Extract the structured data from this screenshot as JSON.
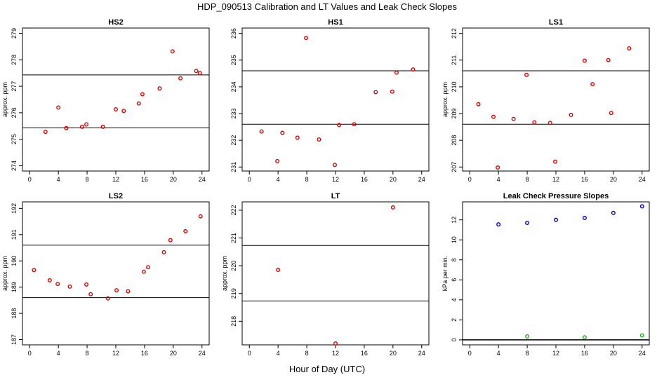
{
  "title": "HDP_090513  Calibration and LT Values and Leak Check Slopes",
  "xlabel": "Hour of Day (UTC)",
  "colors": {
    "points": "#dd0000",
    "blue": "#0000cc",
    "green": "#22aa22",
    "axis": "#000000"
  },
  "chart_data": [
    {
      "type": "scatter",
      "title": "HS2",
      "ylabel": "approx. ppm",
      "xlim": [
        -1,
        25
      ],
      "ylim": [
        273.8,
        279.2
      ],
      "x_ticks": [
        0,
        4,
        8,
        12,
        16,
        20,
        24
      ],
      "y_ticks": [
        274,
        275,
        276,
        277,
        278,
        279
      ],
      "hlines": [
        275.43,
        277.43
      ],
      "series": [
        {
          "color": "#dd0000",
          "x": [
            2.2,
            4.0,
            5.1,
            7.3,
            7.9,
            10.2,
            12.0,
            13.1,
            15.2,
            15.7,
            18.1,
            19.9,
            21.0,
            23.2,
            23.7
          ],
          "y": [
            275.28,
            276.2,
            275.42,
            275.47,
            275.56,
            275.47,
            276.13,
            276.07,
            276.35,
            276.7,
            276.92,
            278.32,
            277.3,
            277.58,
            277.5
          ]
        }
      ]
    },
    {
      "type": "scatter",
      "title": "HS1",
      "ylabel": "",
      "xlim": [
        -1,
        25
      ],
      "ylim": [
        230.85,
        236.2
      ],
      "x_ticks": [
        0,
        4,
        8,
        12,
        16,
        20,
        24
      ],
      "y_ticks": [
        231,
        232,
        233,
        234,
        235,
        236
      ],
      "hlines": [
        232.6,
        234.6
      ],
      "series": [
        {
          "color": "#dd0000",
          "x": [
            1.7,
            3.9,
            4.6,
            6.7,
            7.9,
            9.7,
            11.9,
            12.5,
            14.6,
            17.6,
            19.9,
            20.5,
            22.8
          ],
          "y": [
            232.33,
            231.22,
            232.28,
            232.1,
            235.83,
            232.03,
            231.08,
            232.57,
            232.6,
            233.8,
            233.82,
            234.53,
            234.65
          ]
        }
      ]
    },
    {
      "type": "scatter",
      "title": "LS1",
      "ylabel": "approx. ppm",
      "xlim": [
        -1,
        25
      ],
      "ylim": [
        206.85,
        212.2
      ],
      "x_ticks": [
        0,
        4,
        8,
        12,
        16,
        20,
        24
      ],
      "y_ticks": [
        207,
        208,
        209,
        210,
        211,
        212
      ],
      "hlines": [
        208.6,
        210.6
      ],
      "series": [
        {
          "color": "#dd0000",
          "x": [
            1.2,
            3.3,
            3.9,
            6.1,
            7.9,
            9.0,
            11.2,
            11.9,
            14.1,
            16.0,
            17.1,
            19.3,
            19.7,
            22.2
          ],
          "y": [
            209.35,
            208.88,
            206.98,
            208.8,
            210.45,
            208.67,
            208.65,
            207.2,
            208.95,
            210.98,
            210.1,
            211.0,
            209.02,
            211.44
          ]
        }
      ]
    },
    {
      "type": "scatter",
      "title": "LS2",
      "ylabel": "approx. ppm",
      "xlim": [
        -1,
        25
      ],
      "ylim": [
        186.8,
        192.25
      ],
      "x_ticks": [
        0,
        4,
        8,
        12,
        16,
        20,
        24
      ],
      "y_ticks": [
        187,
        188,
        189,
        190,
        191,
        192
      ],
      "hlines": [
        188.6,
        190.6
      ],
      "series": [
        {
          "color": "#dd0000",
          "x": [
            0.6,
            2.8,
            3.9,
            5.6,
            7.9,
            8.5,
            10.9,
            12.1,
            13.7,
            15.9,
            16.5,
            18.7,
            19.6,
            21.7,
            23.8
          ],
          "y": [
            189.65,
            189.26,
            189.12,
            189.02,
            189.1,
            188.73,
            188.57,
            188.88,
            188.84,
            189.59,
            189.76,
            190.33,
            190.79,
            191.13,
            191.7
          ]
        }
      ]
    },
    {
      "type": "scatter",
      "title": "LT",
      "ylabel": "approx. ppm",
      "xlim": [
        -1,
        25
      ],
      "ylim": [
        217.15,
        222.3
      ],
      "x_ticks": [
        0,
        4,
        8,
        12,
        16,
        20,
        24
      ],
      "y_ticks": [
        218,
        219,
        220,
        221,
        222
      ],
      "hlines": [
        218.73,
        220.73
      ],
      "series": [
        {
          "color": "#dd0000",
          "x": [
            4.0,
            12.0,
            20.0
          ],
          "y": [
            219.85,
            217.2,
            222.1
          ]
        }
      ]
    },
    {
      "type": "scatter",
      "title": "Leak Check Pressure Slopes",
      "ylabel": "kPa per min.",
      "xlim": [
        -1,
        25
      ],
      "ylim": [
        -0.5,
        13.8
      ],
      "x_ticks": [
        0,
        4,
        8,
        12,
        16,
        20,
        24
      ],
      "y_ticks": [
        0,
        2,
        4,
        6,
        8,
        10,
        12
      ],
      "hlines": [
        0
      ],
      "series": [
        {
          "color": "#0000cc",
          "x": [
            4,
            8,
            12,
            16,
            20,
            24
          ],
          "y": [
            11.55,
            11.7,
            12.0,
            12.2,
            12.7,
            13.35
          ]
        },
        {
          "color": "#22aa22",
          "x": [
            8,
            16,
            24
          ],
          "y": [
            0.35,
            0.25,
            0.45
          ]
        }
      ]
    }
  ]
}
